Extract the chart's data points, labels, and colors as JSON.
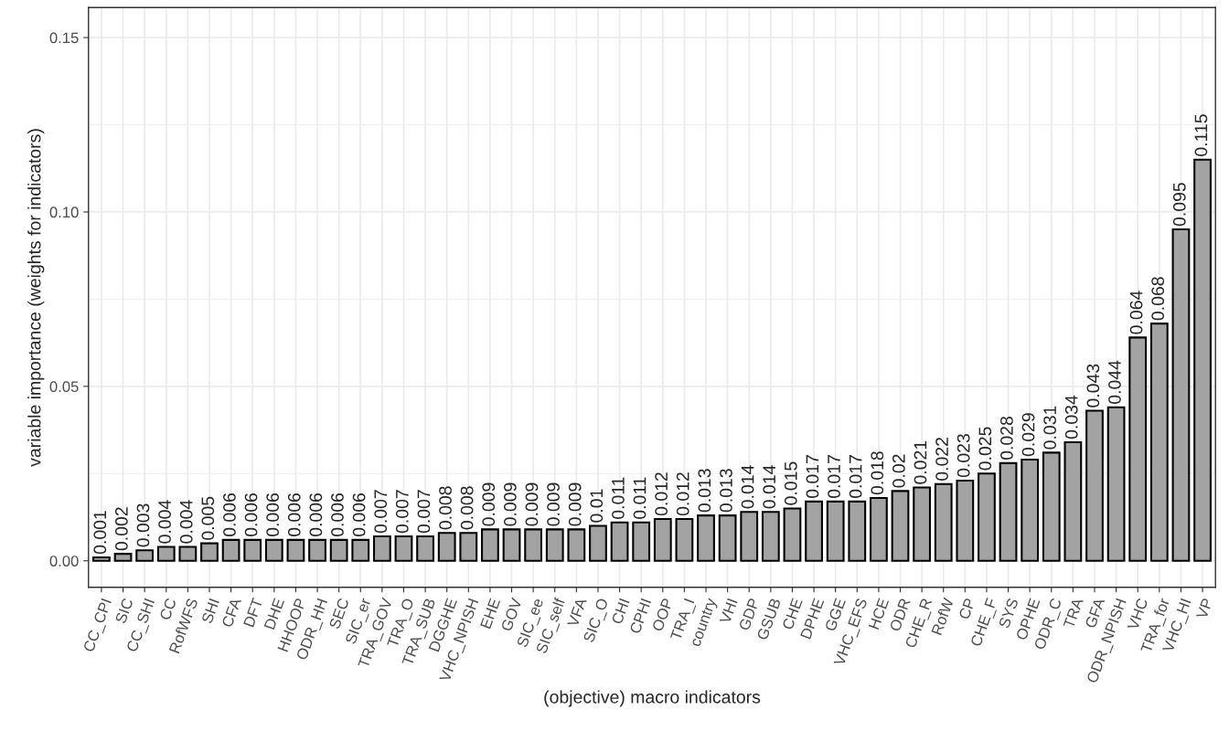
{
  "chart_data": {
    "type": "bar",
    "xlabel": "(objective) macro indicators",
    "ylabel": "variable importance (weights for indicators)",
    "categories": [
      "CC_CPI",
      "SIC",
      "CC_SHI",
      "CC",
      "RofWFS",
      "SHI",
      "CFA",
      "DFT",
      "DHE",
      "HHOOP",
      "ODR_HH",
      "SEC",
      "SIC_er",
      "TRA_GOV",
      "TRA_O",
      "TRA_SUB",
      "DGGHE",
      "VHC_NPISH",
      "EHE",
      "GOV",
      "SIC_ee",
      "SIC_self",
      "VFA",
      "SIC_O",
      "CHI",
      "CPHI",
      "OOP",
      "TRA_I",
      "country",
      "VHI",
      "GDP",
      "GSUB",
      "CHE",
      "DPHE",
      "GGE",
      "VHC_EFS",
      "HCE",
      "ODR",
      "CHE_R",
      "RofW",
      "CP",
      "CHE_F",
      "SYS",
      "OPHE",
      "ODR_C",
      "TRA",
      "GFA",
      "ODR_NPISH",
      "VHC",
      "TRA_for",
      "VHC_HI",
      "VP"
    ],
    "values": [
      0.001,
      0.002,
      0.003,
      0.004,
      0.004,
      0.005,
      0.006,
      0.006,
      0.006,
      0.006,
      0.006,
      0.006,
      0.006,
      0.007,
      0.007,
      0.007,
      0.008,
      0.008,
      0.009,
      0.009,
      0.009,
      0.009,
      0.009,
      0.01,
      0.011,
      0.011,
      0.012,
      0.012,
      0.013,
      0.013,
      0.014,
      0.014,
      0.015,
      0.017,
      0.017,
      0.017,
      0.018,
      0.02,
      0.021,
      0.022,
      0.023,
      0.025,
      0.028,
      0.029,
      0.031,
      0.034,
      0.043,
      0.044,
      0.064,
      0.068,
      0.095,
      0.115
    ],
    "color": "#a3a3a3",
    "data_labels": true,
    "ylim": [
      -0.0076,
      0.1586
    ],
    "yticks": [
      {
        "value": 0,
        "label": "0.00"
      },
      {
        "value": 0.05,
        "label": "0.05"
      },
      {
        "value": 0.1,
        "label": "0.10"
      },
      {
        "value": 0.15,
        "label": "0.15"
      }
    ],
    "grid": true,
    "legend": false
  }
}
